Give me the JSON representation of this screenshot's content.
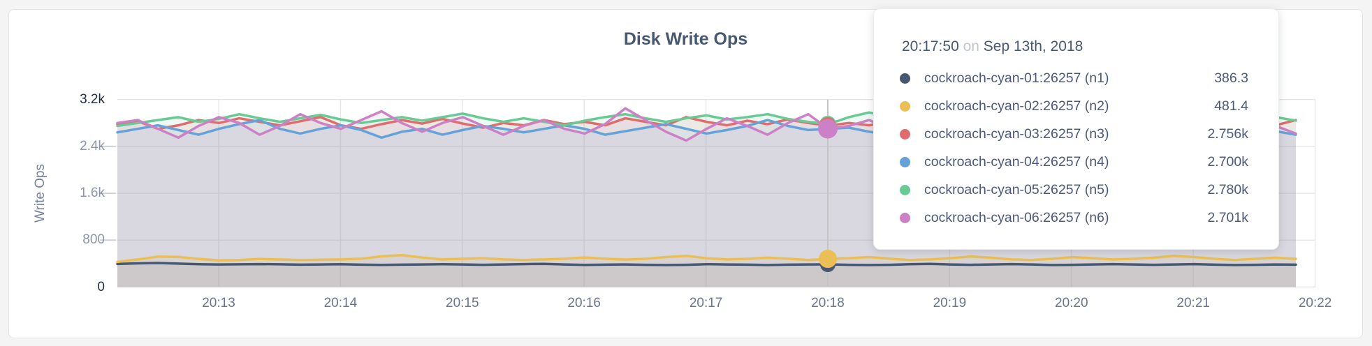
{
  "chart": {
    "title": "Disk Write Ops",
    "ylabel": "Write Ops"
  },
  "tooltip": {
    "time": "20:17:50",
    "connector": "on",
    "date": "Sep 13th, 2018",
    "hover_index": 35,
    "hover_x_label": "20:18",
    "rows": [
      {
        "series": "n1",
        "label": "cockroach-cyan-01:26257 (n1)",
        "value": "386.3",
        "color": "#475872"
      },
      {
        "series": "n2",
        "label": "cockroach-cyan-02:26257 (n2)",
        "value": "481.4",
        "color": "#eabf55"
      },
      {
        "series": "n3",
        "label": "cockroach-cyan-03:26257 (n3)",
        "value": "2.756k",
        "color": "#e06c6c"
      },
      {
        "series": "n4",
        "label": "cockroach-cyan-04:26257 (n4)",
        "value": "2.700k",
        "color": "#64a3d9"
      },
      {
        "series": "n5",
        "label": "cockroach-cyan-05:26257 (n5)",
        "value": "2.780k",
        "color": "#67cb93"
      },
      {
        "series": "n6",
        "label": "cockroach-cyan-06:26257 (n6)",
        "value": "2.701k",
        "color": "#cc80c5"
      }
    ]
  },
  "chart_data": {
    "type": "line",
    "title": "Disk Write Ops",
    "xlabel": "",
    "ylabel": "Write Ops",
    "ylim": [
      0,
      3200
    ],
    "grid": true,
    "legend_position": "tooltip-only",
    "x_start_time": "20:12:10",
    "x_interval_seconds": 10,
    "yticks": [
      {
        "label": "3.2k",
        "value": 3200,
        "emphasized": true,
        "dash": false
      },
      {
        "label": "2.4k",
        "value": 2400,
        "emphasized": false,
        "dash": true
      },
      {
        "label": "1.6k",
        "value": 1600,
        "emphasized": false,
        "dash": true
      },
      {
        "label": "800",
        "value": 800,
        "emphasized": false,
        "dash": true
      },
      {
        "label": "0",
        "value": 0,
        "emphasized": true,
        "dash": false
      }
    ],
    "xticks": [
      "20:13",
      "20:14",
      "20:15",
      "20:16",
      "20:17",
      "20:18",
      "20:19",
      "20:20",
      "20:21",
      "20:22"
    ],
    "series": [
      {
        "id": "n1",
        "name": "cockroach-cyan-01:26257 (n1)",
        "color": "#475872",
        "values": [
          395,
          405,
          410,
          400,
          390,
          385,
          388,
          392,
          388,
          382,
          385,
          390,
          382,
          378,
          382,
          386,
          390,
          386,
          380,
          385,
          392,
          396,
          386,
          378,
          382,
          386,
          380,
          376,
          380,
          390,
          386,
          382,
          376,
          382,
          386,
          386.3,
          380,
          376,
          380,
          390,
          396,
          386,
          380,
          386,
          392,
          386,
          376,
          380,
          386,
          392,
          386,
          380,
          386,
          392,
          382,
          376,
          380,
          386,
          382
        ]
      },
      {
        "id": "n2",
        "name": "cockroach-cyan-02:26257 (n2)",
        "color": "#eabf55",
        "values": [
          430,
          470,
          520,
          515,
          480,
          455,
          462,
          480,
          470,
          462,
          466,
          472,
          484,
          525,
          545,
          505,
          472,
          482,
          492,
          472,
          462,
          472,
          484,
          505,
          484,
          470,
          482,
          512,
          532,
          492,
          472,
          482,
          502,
          484,
          462,
          481.4,
          492,
          512,
          484,
          462,
          472,
          492,
          522,
          502,
          472,
          462,
          482,
          512,
          492,
          472,
          482,
          502,
          532,
          512,
          482,
          462,
          482,
          502,
          480
        ]
      },
      {
        "id": "n3",
        "name": "cockroach-cyan-03:26257 (n3)",
        "color": "#e06c6c",
        "values": [
          2780,
          2830,
          2700,
          2760,
          2850,
          2800,
          2880,
          2820,
          2760,
          2830,
          2900,
          2760,
          2700,
          2780,
          2850,
          2790,
          2870,
          2790,
          2720,
          2800,
          2760,
          2850,
          2780,
          2820,
          2760,
          2880,
          2820,
          2760,
          2900,
          2820,
          2760,
          2840,
          2780,
          2860,
          2800,
          2756,
          2800,
          2760,
          2820,
          2780,
          2850,
          2790,
          2860,
          2800,
          2760,
          2830,
          2780,
          2850,
          2800,
          2870,
          2790,
          2750,
          2820,
          2900,
          2780,
          2840,
          2800,
          2760,
          2850
        ]
      },
      {
        "id": "n4",
        "name": "cockroach-cyan-04:26257 (n4)",
        "color": "#64a3d9",
        "values": [
          2640,
          2700,
          2760,
          2680,
          2600,
          2700,
          2780,
          2850,
          2700,
          2620,
          2700,
          2760,
          2680,
          2550,
          2650,
          2700,
          2600,
          2680,
          2750,
          2700,
          2640,
          2700,
          2760,
          2700,
          2600,
          2660,
          2720,
          2780,
          2700,
          2620,
          2680,
          2750,
          2850,
          2750,
          2680,
          2700,
          2720,
          2650,
          2600,
          2680,
          2740,
          2700,
          2650,
          2700,
          2760,
          2700,
          2640,
          2700,
          2750,
          2700,
          2650,
          2700,
          2740,
          2680,
          2620,
          2680,
          2720,
          2660,
          2600
        ]
      },
      {
        "id": "n5",
        "name": "cockroach-cyan-05:26257 (n5)",
        "color": "#67cb93",
        "values": [
          2750,
          2800,
          2850,
          2900,
          2820,
          2870,
          2950,
          2880,
          2820,
          2880,
          2940,
          2860,
          2800,
          2850,
          2900,
          2840,
          2900,
          2960,
          2880,
          2820,
          2880,
          2820,
          2760,
          2840,
          2900,
          2950,
          2880,
          2820,
          2880,
          2930,
          2860,
          2900,
          2950,
          2870,
          2820,
          2780,
          2900,
          2980,
          2900,
          2840,
          2900,
          2850,
          2800,
          2860,
          2920,
          2870,
          2820,
          2880,
          2940,
          2880,
          2830,
          2890,
          2850,
          2900,
          2860,
          2820,
          2880,
          2900,
          2840
        ]
      },
      {
        "id": "n6",
        "name": "cockroach-cyan-06:26257 (n6)",
        "color": "#cc80c5",
        "values": [
          2800,
          2850,
          2700,
          2550,
          2750,
          2900,
          2800,
          2600,
          2750,
          2950,
          2800,
          2700,
          2850,
          3000,
          2800,
          2650,
          2800,
          2900,
          2750,
          2600,
          2750,
          2850,
          2700,
          2620,
          2780,
          3050,
          2850,
          2650,
          2500,
          2700,
          2880,
          2750,
          2600,
          2800,
          2950,
          2701,
          2750,
          2850,
          2700,
          2600,
          2750,
          2900,
          3000,
          2800,
          2650,
          2750,
          2850,
          2700,
          2620,
          2800,
          2950,
          2850,
          2700,
          2600,
          2750,
          3050,
          2900,
          2750,
          2620
        ]
      }
    ]
  },
  "style_colors": {
    "grid_line": "#e6e6e8",
    "tick_dash": "#ccd0d8",
    "hover_line": "#c4c4c6",
    "area_fill_opacity": 0.11
  }
}
